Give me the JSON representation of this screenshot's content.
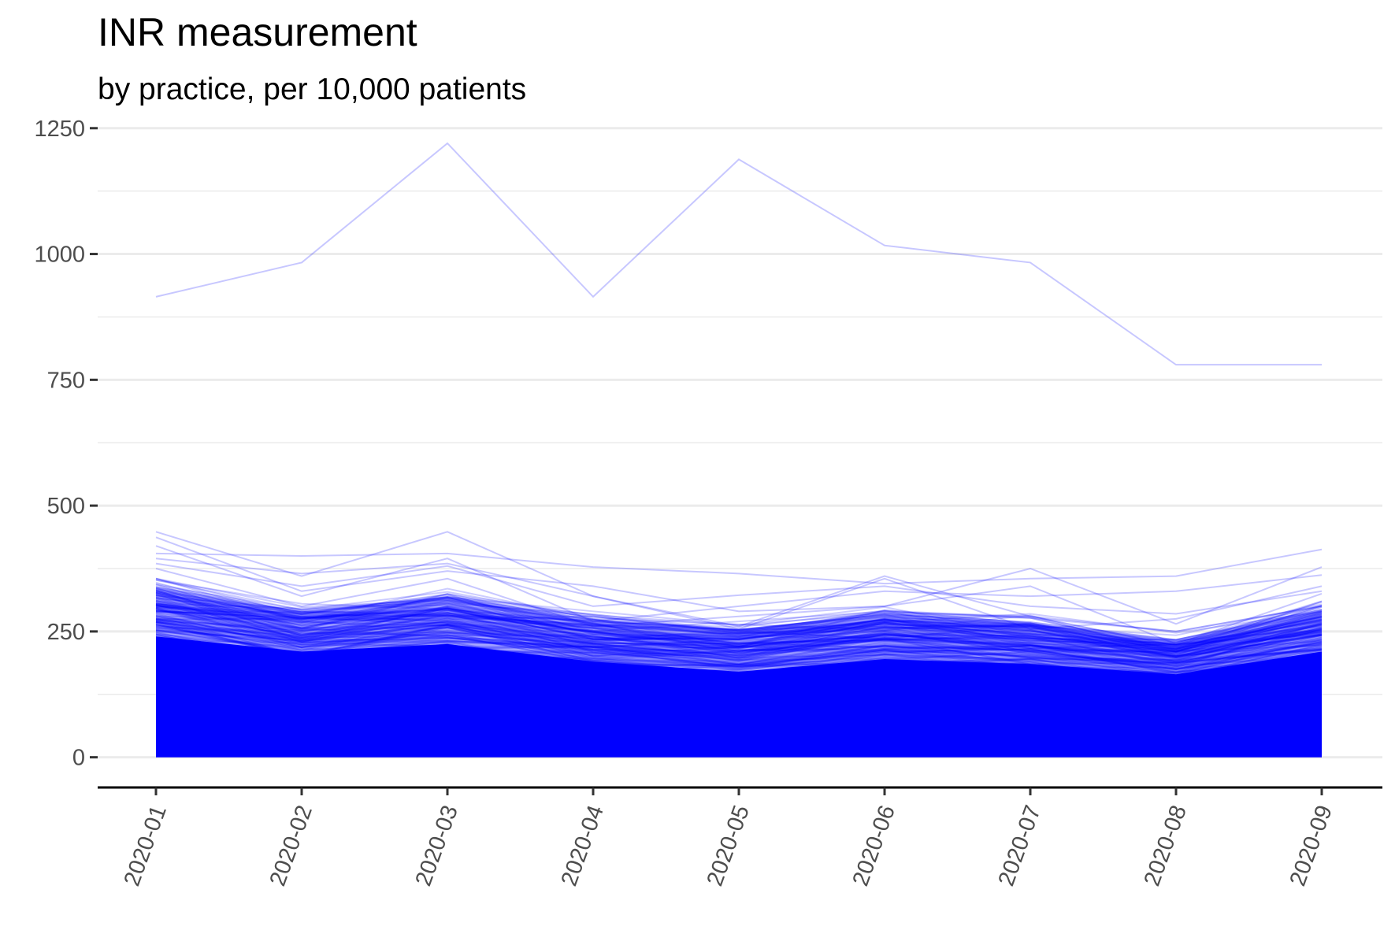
{
  "chart_data": {
    "type": "line",
    "title": "INR measurement",
    "subtitle": "by practice, per 10,000 patients",
    "xlabel": "",
    "ylabel": "",
    "categories": [
      "2020-01",
      "2020-02",
      "2020-03",
      "2020-04",
      "2020-05",
      "2020-06",
      "2020-07",
      "2020-08",
      "2020-09"
    ],
    "ylim": [
      -60,
      1270
    ],
    "yticks": [
      0,
      250,
      500,
      750,
      1000,
      1250
    ],
    "grid": true,
    "legend": "none",
    "line_color": "#0000ff",
    "highlighted_series": [
      {
        "values": [
          915,
          983,
          1220,
          915,
          1188,
          1017,
          983,
          780,
          780
        ]
      },
      {
        "values": [
          448,
          360,
          448,
          320,
          260,
          360,
          280,
          250,
          300
        ]
      },
      {
        "values": [
          405,
          400,
          405,
          378,
          365,
          345,
          355,
          360,
          413
        ]
      },
      {
        "values": [
          437,
          330,
          370,
          340,
          290,
          300,
          375,
          265,
          378
        ]
      },
      {
        "values": [
          420,
          320,
          395,
          270,
          300,
          330,
          320,
          330,
          362
        ]
      },
      {
        "values": [
          395,
          365,
          385,
          320,
          255,
          355,
          255,
          275,
          340
        ]
      },
      {
        "values": [
          385,
          340,
          380,
          300,
          322,
          340,
          300,
          285,
          330
        ]
      },
      {
        "values": [
          375,
          300,
          355,
          260,
          280,
          300,
          340,
          225,
          325
        ]
      }
    ],
    "bulk_envelope": {
      "upper": [
        340,
        290,
        320,
        275,
        255,
        285,
        270,
        235,
        295
      ],
      "dense_upper": [
        240,
        210,
        225,
        190,
        170,
        195,
        185,
        165,
        210
      ],
      "lower": [
        0,
        0,
        0,
        0,
        0,
        0,
        0,
        0,
        0
      ],
      "background_line_count": 260
    }
  }
}
